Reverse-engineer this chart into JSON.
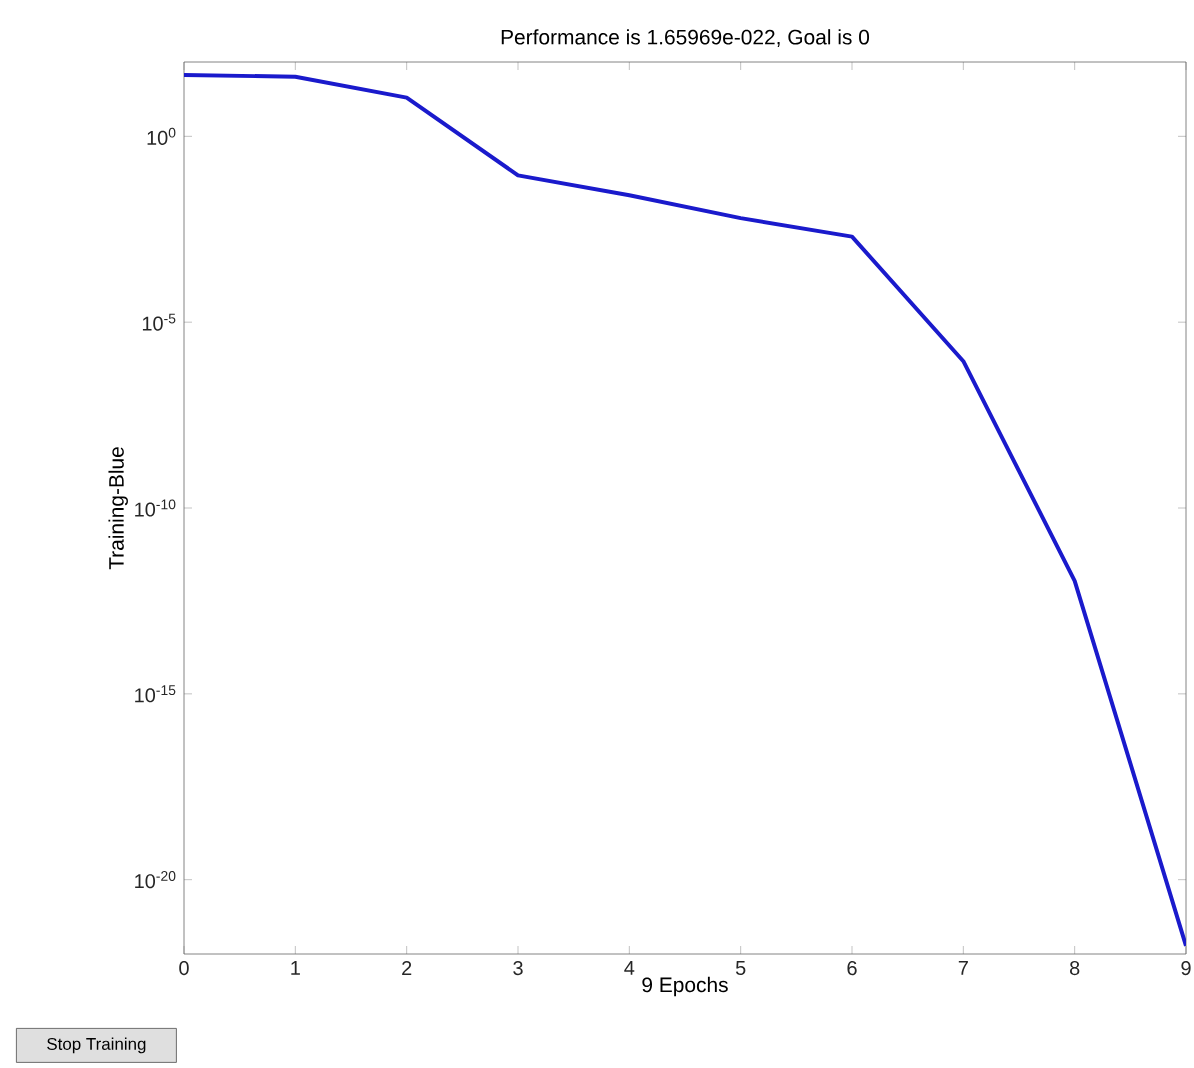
{
  "chart_data": {
    "type": "line",
    "title": "Performance is 1.65969e-022, Goal is 0",
    "xlabel": "9 Epochs",
    "ylabel": "Training-Blue",
    "x": [
      0,
      1,
      2,
      3,
      4,
      5,
      6,
      7,
      8,
      9
    ],
    "series": [
      {
        "color": "#1a1acc",
        "values": [
          45,
          40,
          11,
          0.089,
          0.026,
          0.0063,
          0.002,
          8.9e-07,
          1.1e-12,
          1.66e-22
        ]
      }
    ],
    "log": "y",
    "xlim": [
      0,
      9
    ],
    "ylim": [
      1e-22,
      100
    ],
    "xticks": [
      0,
      1,
      2,
      3,
      4,
      5,
      6,
      7,
      8,
      9
    ],
    "yticks": [
      {
        "value": 1e-20,
        "label": "10$^{-20}$"
      },
      {
        "value": 1e-15,
        "label": "10$^{-15}$"
      },
      {
        "value": 1e-10,
        "label": "10$^{-10}$"
      },
      {
        "value": 1e-05,
        "label": "10$^{-5}$"
      },
      {
        "value": 1,
        "label": "10$^{0}$"
      }
    ],
    "annotations": [
      "Stop Training"
    ]
  }
}
